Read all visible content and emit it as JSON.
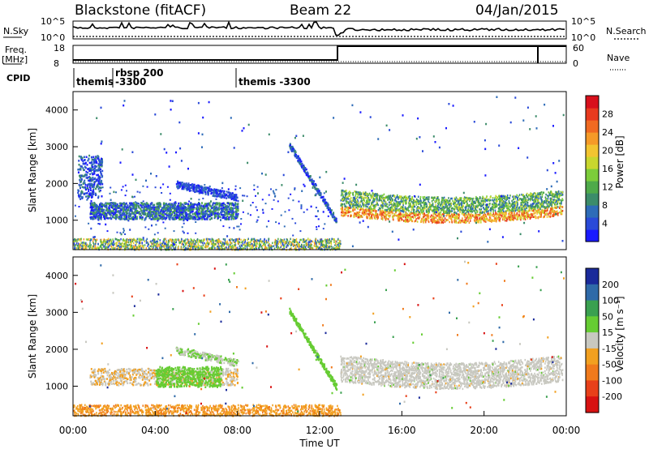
{
  "header": {
    "title": "Blackstone (fitACF)",
    "beam": "Beam 22",
    "date": "04/Jan/2015"
  },
  "panels": {
    "nsky": {
      "label": "N.Sky",
      "ytick_top": "10^5",
      "ytick_bottom": "10^0",
      "right_label": "N.Search",
      "rtick_top": "10^5",
      "rtick_bottom": "10^0"
    },
    "freq": {
      "label_line1": "Freq.",
      "label_line2": "[MHz]",
      "ytick_top": "18",
      "ytick_bottom": "8",
      "right_label": "Nave",
      "rtick_top": "60",
      "rtick_bottom": "0"
    },
    "cpid": {
      "label": "CPID",
      "segments": [
        {
          "line1": "themis",
          "line2": ""
        },
        {
          "line1": "rbsp 200",
          "line2": "-3300"
        },
        {
          "line1": "themis -3300",
          "line2": ""
        }
      ]
    }
  },
  "chart_data": [
    {
      "type": "heatmap",
      "name": "power",
      "ylabel": "Slant Range [km]",
      "yticks": [
        "1000",
        "2000",
        "3000",
        "4000"
      ],
      "ylim": [
        200,
        4500
      ],
      "xlim_hours": [
        0,
        24
      ],
      "colorbar": {
        "label": "Power [dB]",
        "ticks": [
          "4",
          "8",
          "12",
          "16",
          "20",
          "24",
          "28"
        ],
        "colors": [
          "#1a1aff",
          "#2a4ad8",
          "#2e6cb8",
          "#3c8c6a",
          "#4faa4a",
          "#7ccc3a",
          "#c8d62e",
          "#f2c430",
          "#f59a28",
          "#f06a22",
          "#e83a1e",
          "#d8101c"
        ]
      },
      "features": [
        {
          "desc": "band",
          "t": [
            0.0,
            8.0
          ],
          "r": [
            1100,
            1450
          ],
          "level": "blue-green"
        },
        {
          "desc": "band",
          "t": [
            13.0,
            23.7
          ],
          "r": [
            1200,
            1900
          ],
          "level": "green-orange"
        }
      ]
    },
    {
      "type": "heatmap",
      "name": "velocity",
      "ylabel": "Slant Range [km]",
      "xlabel": "Time UT",
      "xticks": [
        "00:00",
        "04:00",
        "08:00",
        "12:00",
        "16:00",
        "20:00",
        "00:00"
      ],
      "yticks": [
        "1000",
        "2000",
        "3000",
        "4000"
      ],
      "ylim": [
        200,
        4500
      ],
      "xlim_hours": [
        0,
        24
      ],
      "colorbar": {
        "label": "Velocity [m s⁻¹]",
        "ticks": [
          "200",
          "100",
          "50",
          "15",
          "-15",
          "-50",
          "-100",
          "-200"
        ],
        "colors": [
          "#1a2a9a",
          "#2f6aa8",
          "#3aa050",
          "#66cc33",
          "#c8c8c0",
          "#f2a020",
          "#f07a1c",
          "#e8401a",
          "#d81212"
        ]
      }
    }
  ],
  "colors": {
    "axis": "#000000",
    "ground": "#c8c8c0"
  }
}
